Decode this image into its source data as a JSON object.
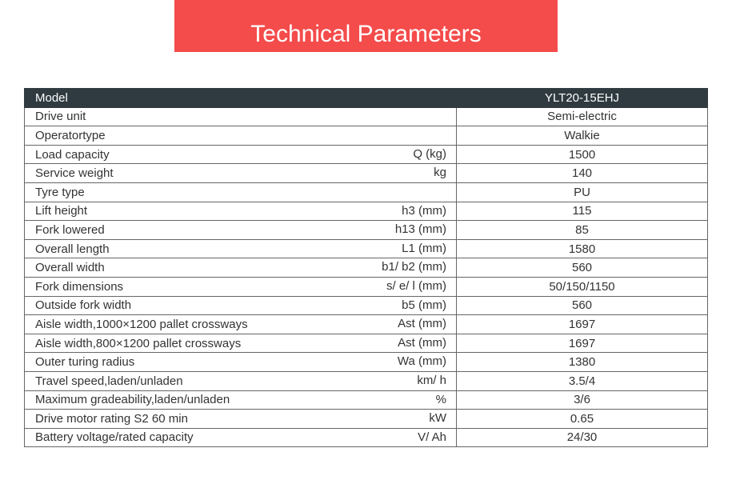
{
  "header": {
    "title": "Technical Parameters"
  },
  "table": {
    "head": {
      "label": "Model",
      "value": "YLT20-15EHJ"
    },
    "rows": [
      {
        "label": "Drive unit",
        "value": "Semi-electric"
      },
      {
        "label": "Operatortype",
        "value": "Walkie"
      },
      {
        "label": "Load capacity",
        "unit": "Q (kg)",
        "value": "1500"
      },
      {
        "label": "Service weight",
        "unit": "kg",
        "value": "140"
      },
      {
        "label": "Tyre type",
        "value": "PU"
      },
      {
        "label": "Lift height",
        "unit": "h3 (mm)",
        "value": "115"
      },
      {
        "label": "Fork lowered",
        "unit": "h13 (mm)",
        "value": "85"
      },
      {
        "label": "Overall length",
        "unit": "L1 (mm)",
        "value": "1580"
      },
      {
        "label": "Overall width",
        "unit": "b1/ b2 (mm)",
        "value": "560"
      },
      {
        "label": "Fork dimensions",
        "unit": "s/ e/ l (mm)",
        "value": "50/150/1150"
      },
      {
        "label": "Outside fork width",
        "unit": "b5 (mm)",
        "value": "560"
      },
      {
        "label": "Aisle width,1000×1200 pallet crossways",
        "unit": "Ast (mm)",
        "value": "1697"
      },
      {
        "label": "Aisle width,800×1200 pallet crossways",
        "unit": "Ast (mm)",
        "value": "1697"
      },
      {
        "label": "Outer turing radius",
        "unit": "Wa (mm)",
        "value": "1380"
      },
      {
        "label": "Travel speed,laden/unladen",
        "unit": "km/ h",
        "value": "3.5/4"
      },
      {
        "label": "Maximum gradeability,laden/unladen",
        "unit": "%",
        "value": "3/6"
      },
      {
        "label": "Drive motor rating S2 60 min",
        "unit": "kW",
        "value": "0.65"
      },
      {
        "label": "Battery voltage/rated capacity",
        "unit": "V/ Ah",
        "value": "24/30"
      }
    ]
  }
}
